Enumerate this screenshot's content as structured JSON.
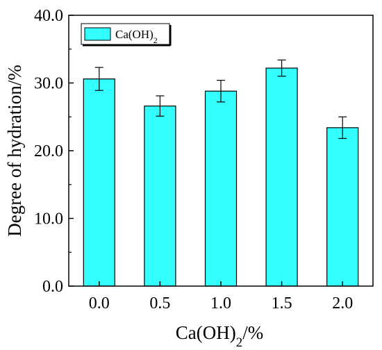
{
  "chart_data": {
    "type": "bar",
    "categories": [
      "0.0",
      "0.5",
      "1.0",
      "1.5",
      "2.0"
    ],
    "series": [
      {
        "name": "Ca(OH)2",
        "values": [
          30.6,
          26.6,
          28.8,
          32.2,
          23.4
        ],
        "errors": [
          1.7,
          1.5,
          1.6,
          1.2,
          1.6
        ],
        "color": "#33ffff"
      }
    ],
    "xlabel": "Ca(OH)2/%",
    "ylabel": "Degree of hydration/%",
    "ylim": [
      0,
      40
    ],
    "yticks": [
      "0.0",
      "10.0",
      "20.0",
      "30.0",
      "40.0"
    ],
    "grid": false,
    "legend_position": "top-left"
  }
}
